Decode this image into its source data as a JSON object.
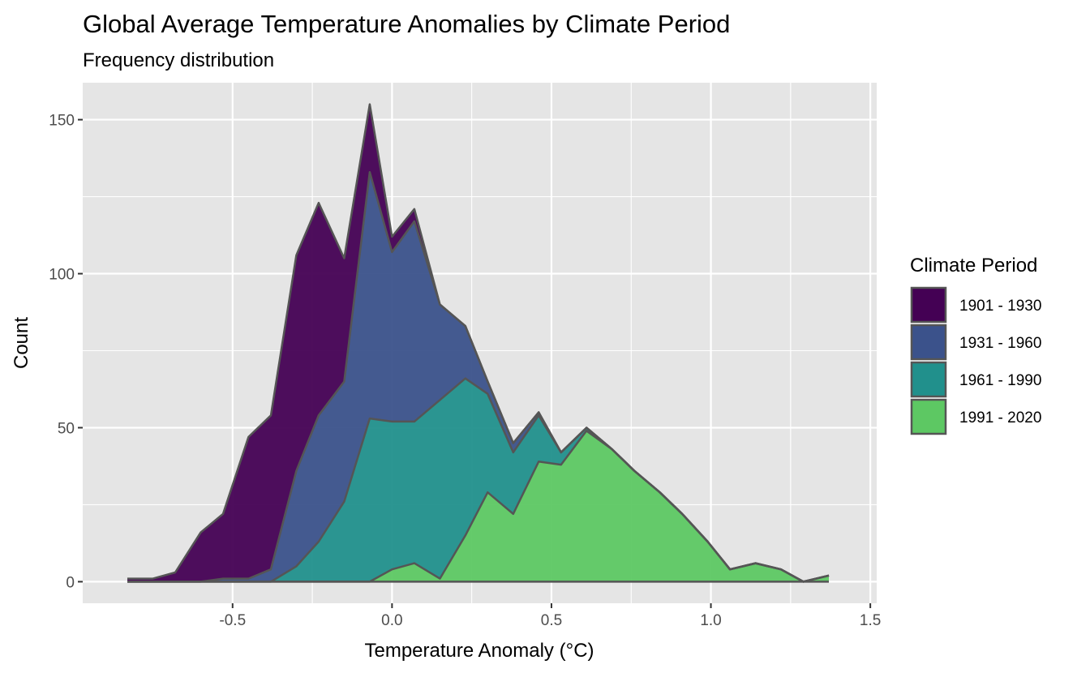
{
  "chart_data": {
    "type": "area",
    "stacked": true,
    "title": "Global Average Temperature Anomalies by Climate Period",
    "subtitle": "Frequency distribution",
    "xlabel": "Temperature Anomaly (°C)",
    "ylabel": "Count",
    "xlim": [
      -0.97,
      1.52
    ],
    "ylim": [
      -7,
      162
    ],
    "x_ticks": [
      -0.5,
      0.0,
      0.5,
      1.0,
      1.5
    ],
    "x_tick_labels": [
      "-0.5",
      "0.0",
      "0.5",
      "1.0",
      "1.5"
    ],
    "y_ticks": [
      0,
      50,
      100,
      150
    ],
    "y_tick_labels": [
      "0",
      "50",
      "100",
      "150"
    ],
    "grid": true,
    "legend": {
      "title": "Climate Period",
      "position": "right"
    },
    "x": [
      -0.83,
      -0.75,
      -0.68,
      -0.6,
      -0.53,
      -0.45,
      -0.38,
      -0.3,
      -0.23,
      -0.15,
      -0.07,
      0.0,
      0.07,
      0.15,
      0.23,
      0.3,
      0.38,
      0.46,
      0.53,
      0.61,
      0.69,
      0.76,
      0.84,
      0.91,
      0.99,
      1.06,
      1.14,
      1.22,
      1.29,
      1.37
    ],
    "series": [
      {
        "name": "1901 - 1930",
        "color": "#440154",
        "values": [
          1,
          1,
          3,
          16,
          21,
          46,
          50,
          70,
          69,
          40,
          22,
          5,
          4,
          0,
          0,
          0,
          0,
          0,
          0,
          0,
          0,
          0,
          0,
          0,
          0,
          0,
          0,
          0,
          0,
          0
        ]
      },
      {
        "name": "1931 - 1960",
        "color": "#3B528B",
        "values": [
          0,
          0,
          0,
          0,
          1,
          1,
          4,
          31,
          41,
          39,
          80,
          55,
          65,
          31,
          17,
          4,
          3,
          1,
          0,
          0,
          0,
          0,
          0,
          0,
          0,
          0,
          0,
          0,
          0,
          0
        ]
      },
      {
        "name": "1961 - 1990",
        "color": "#21908C",
        "values": [
          0,
          0,
          0,
          0,
          0,
          0,
          0,
          5,
          13,
          26,
          53,
          48,
          46,
          58,
          51,
          32,
          20,
          15,
          4,
          1,
          0,
          0,
          0,
          0,
          0,
          0,
          0,
          0,
          0,
          0
        ]
      },
      {
        "name": "1991 - 2020",
        "color": "#5DC863",
        "values": [
          0,
          0,
          0,
          0,
          0,
          0,
          0,
          0,
          0,
          0,
          0,
          4,
          6,
          1,
          15,
          29,
          22,
          39,
          38,
          49,
          43,
          36,
          29,
          22,
          13,
          4,
          6,
          4,
          0,
          2
        ]
      }
    ]
  },
  "colors": {
    "panel_background": "#E5E5E5",
    "grid": "#FFFFFF",
    "outline": "#555555"
  }
}
